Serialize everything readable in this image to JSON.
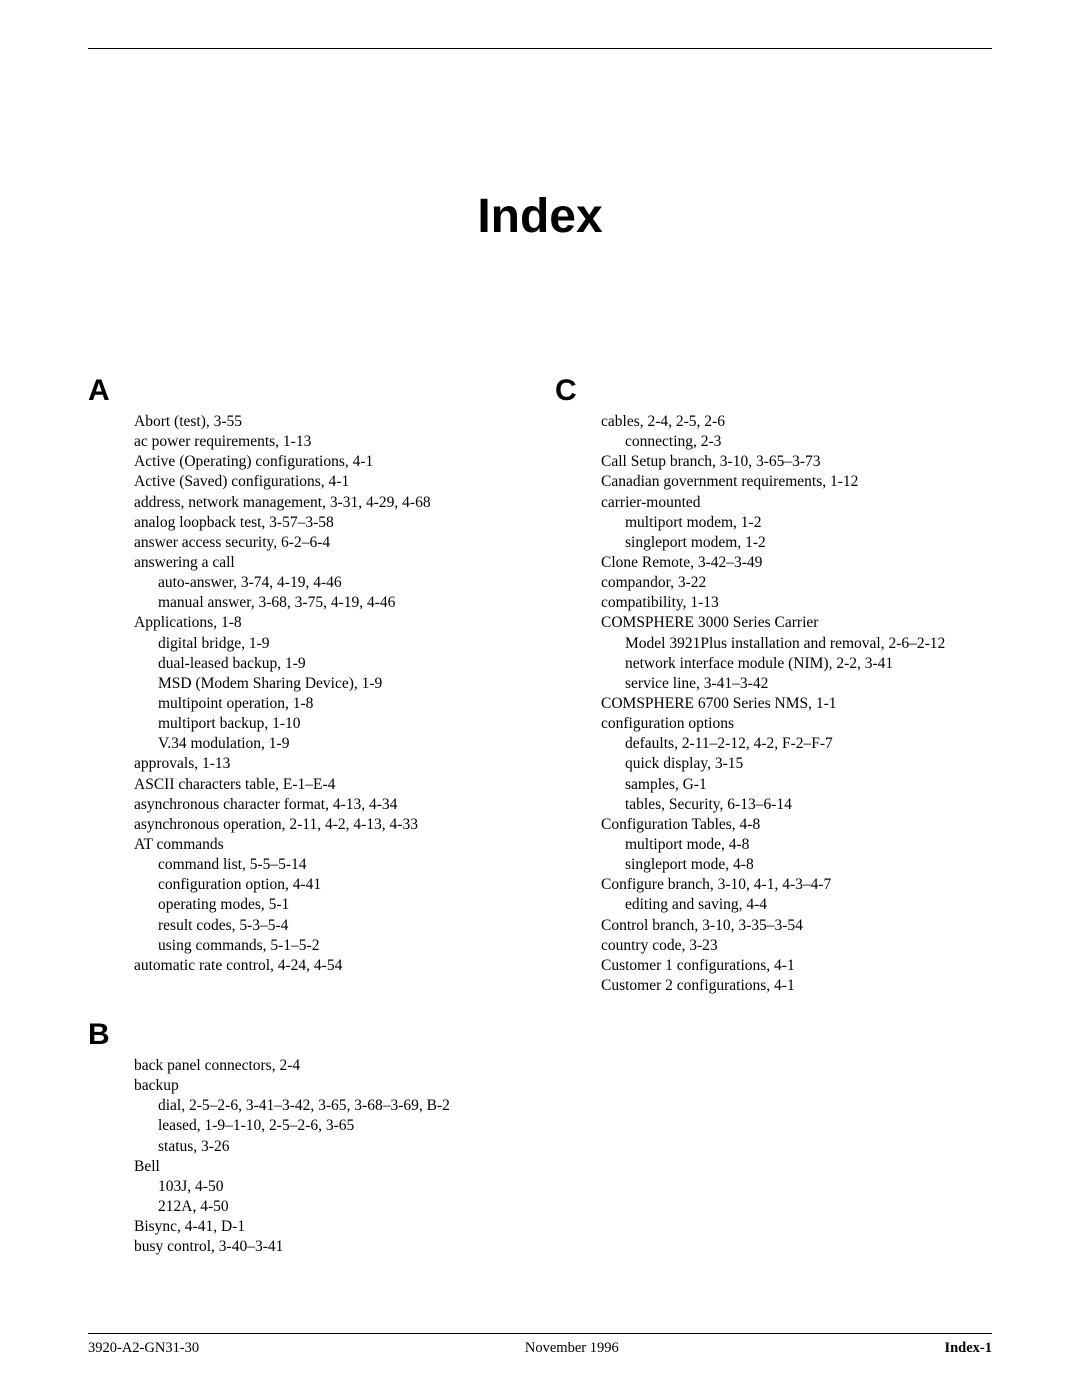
{
  "title": "Index",
  "sections": {
    "A": {
      "letter": "A",
      "items": [
        {
          "t": "Abort (test), 3-55"
        },
        {
          "t": "ac power requirements, 1-13"
        },
        {
          "t": "Active (Operating) configurations, 4-1"
        },
        {
          "t": "Active (Saved) configurations, 4-1"
        },
        {
          "t": "address, network management, 3-31, 4-29, 4-68"
        },
        {
          "t": "analog loopback test, 3-57–3-58"
        },
        {
          "t": "answer access security, 6-2–6-4"
        },
        {
          "t": "answering a call"
        },
        {
          "t": "auto-answer, 3-74, 4-19, 4-46",
          "sub": true
        },
        {
          "t": "manual answer, 3-68, 3-75, 4-19, 4-46",
          "sub": true
        },
        {
          "t": "Applications, 1-8"
        },
        {
          "t": "digital bridge, 1-9",
          "sub": true
        },
        {
          "t": "dual-leased backup, 1-9",
          "sub": true
        },
        {
          "t": "MSD (Modem Sharing Device), 1-9",
          "sub": true
        },
        {
          "t": "multipoint operation, 1-8",
          "sub": true
        },
        {
          "t": "multiport backup, 1-10",
          "sub": true
        },
        {
          "t": "V.34 modulation, 1-9",
          "sub": true
        },
        {
          "t": "approvals, 1-13"
        },
        {
          "t": "ASCII characters table, E-1–E-4"
        },
        {
          "t": "asynchronous character format, 4-13, 4-34"
        },
        {
          "t": "asynchronous operation, 2-11, 4-2, 4-13, 4-33"
        },
        {
          "t": "AT commands"
        },
        {
          "t": "command list, 5-5–5-14",
          "sub": true
        },
        {
          "t": "configuration option, 4-41",
          "sub": true
        },
        {
          "t": "operating modes, 5-1",
          "sub": true
        },
        {
          "t": "result codes, 5-3–5-4",
          "sub": true
        },
        {
          "t": "using commands, 5-1–5-2",
          "sub": true
        },
        {
          "t": "automatic rate control, 4-24, 4-54"
        }
      ]
    },
    "B": {
      "letter": "B",
      "items": [
        {
          "t": "back panel connectors, 2-4"
        },
        {
          "t": "backup"
        },
        {
          "t": "dial, 2-5–2-6, 3-41–3-42, 3-65, 3-68–3-69, B-2",
          "sub": true
        },
        {
          "t": "leased, 1-9–1-10, 2-5–2-6, 3-65",
          "sub": true
        },
        {
          "t": "status, 3-26",
          "sub": true
        },
        {
          "t": "Bell"
        },
        {
          "t": "103J, 4-50",
          "sub": true
        },
        {
          "t": "212A, 4-50",
          "sub": true
        },
        {
          "t": "Bisync, 4-41, D-1"
        },
        {
          "t": "busy control, 3-40–3-41"
        }
      ]
    },
    "C": {
      "letter": "C",
      "items": [
        {
          "t": "cables, 2-4, 2-5, 2-6"
        },
        {
          "t": "connecting, 2-3",
          "sub": true
        },
        {
          "t": "Call Setup branch, 3-10, 3-65–3-73"
        },
        {
          "t": "Canadian government requirements, 1-12"
        },
        {
          "t": "carrier-mounted"
        },
        {
          "t": "multiport modem, 1-2",
          "sub": true
        },
        {
          "t": "singleport modem, 1-2",
          "sub": true
        },
        {
          "t": "Clone Remote, 3-42–3-49"
        },
        {
          "t": "compandor, 3-22"
        },
        {
          "t": "compatibility, 1-13"
        },
        {
          "t": "COMSPHERE 3000 Series Carrier"
        },
        {
          "t": "Model 3921Plus installation and removal, 2-6–2-12",
          "sub": true
        },
        {
          "t": "network interface module (NIM), 2-2, 3-41",
          "sub": true
        },
        {
          "t": "service line, 3-41–3-42",
          "sub": true
        },
        {
          "t": "COMSPHERE 6700 Series NMS, 1-1"
        },
        {
          "t": "configuration options"
        },
        {
          "t": "defaults, 2-11–2-12, 4-2, F-2–F-7",
          "sub": true
        },
        {
          "t": "quick display, 3-15",
          "sub": true
        },
        {
          "t": "samples, G-1",
          "sub": true
        },
        {
          "t": "tables, Security, 6-13–6-14",
          "sub": true
        },
        {
          "t": "Configuration Tables, 4-8"
        },
        {
          "t": "multiport mode, 4-8",
          "sub": true
        },
        {
          "t": "singleport mode, 4-8",
          "sub": true
        },
        {
          "t": "Configure branch, 3-10, 4-1, 4-3–4-7"
        },
        {
          "t": "editing and saving, 4-4",
          "sub": true
        },
        {
          "t": "Control branch, 3-10, 3-35–3-54"
        },
        {
          "t": "country code, 3-23"
        },
        {
          "t": "Customer 1 configurations, 4-1"
        },
        {
          "t": "Customer 2 configurations, 4-1"
        }
      ]
    }
  },
  "footer": {
    "left": "3920-A2-GN31-30",
    "center": "November 1996",
    "right": "Index-1"
  }
}
